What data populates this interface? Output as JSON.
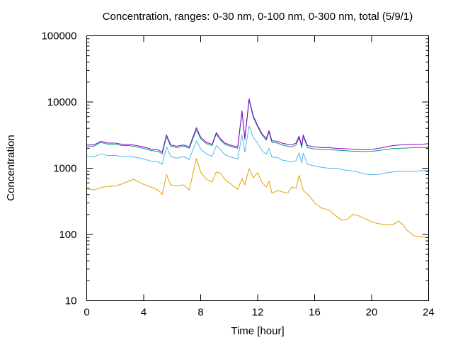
{
  "chart_data": {
    "type": "line",
    "title": "Concentration, ranges: 0-30 nm, 0-100 nm, 0-300 nm, total (5/9/1)",
    "xlabel": "Time [hour]",
    "ylabel": "Concentration",
    "xlim": [
      0,
      24
    ],
    "ylim": [
      10,
      100000
    ],
    "yscale": "log",
    "grid": false,
    "xticks": [
      0,
      4,
      8,
      12,
      16,
      20,
      24
    ],
    "xtick_labels": [
      "0",
      "4",
      "8",
      "12",
      "16",
      "20",
      "24"
    ],
    "yticks": [
      10,
      100,
      1000,
      10000,
      100000
    ],
    "ytick_labels": [
      "10",
      "100",
      "1000",
      "10000",
      "100000"
    ],
    "series": [
      {
        "color": "#e69f00",
        "points": [
          [
            0,
            490
          ],
          [
            0.5,
            470
          ],
          [
            1,
            510
          ],
          [
            1.5,
            530
          ],
          [
            2,
            540
          ],
          [
            2.5,
            580
          ],
          [
            3,
            650
          ],
          [
            3.3,
            680
          ],
          [
            3.7,
            610
          ],
          [
            4,
            570
          ],
          [
            4.5,
            520
          ],
          [
            5,
            470
          ],
          [
            5.3,
            400
          ],
          [
            5.6,
            800
          ],
          [
            5.9,
            560
          ],
          [
            6.3,
            540
          ],
          [
            6.8,
            560
          ],
          [
            7.2,
            470
          ],
          [
            7.7,
            1400
          ],
          [
            8,
            870
          ],
          [
            8.4,
            680
          ],
          [
            8.8,
            620
          ],
          [
            9.1,
            880
          ],
          [
            9.4,
            840
          ],
          [
            9.7,
            680
          ],
          [
            10.2,
            560
          ],
          [
            10.6,
            480
          ],
          [
            10.9,
            700
          ],
          [
            11.1,
            560
          ],
          [
            11.4,
            980
          ],
          [
            11.7,
            720
          ],
          [
            12,
            860
          ],
          [
            12.3,
            620
          ],
          [
            12.6,
            520
          ],
          [
            12.8,
            640
          ],
          [
            13,
            420
          ],
          [
            13.4,
            460
          ],
          [
            13.7,
            440
          ],
          [
            14.1,
            420
          ],
          [
            14.4,
            520
          ],
          [
            14.7,
            500
          ],
          [
            14.9,
            780
          ],
          [
            15.2,
            460
          ],
          [
            15.6,
            390
          ],
          [
            16,
            300
          ],
          [
            16.5,
            250
          ],
          [
            17,
            235
          ],
          [
            17.5,
            190
          ],
          [
            17.9,
            165
          ],
          [
            18.3,
            170
          ],
          [
            18.7,
            200
          ],
          [
            19,
            195
          ],
          [
            19.5,
            175
          ],
          [
            20,
            155
          ],
          [
            20.5,
            145
          ],
          [
            21,
            140
          ],
          [
            21.5,
            140
          ],
          [
            21.9,
            160
          ],
          [
            22.2,
            140
          ],
          [
            22.5,
            115
          ],
          [
            23,
            95
          ],
          [
            23.5,
            92
          ],
          [
            24,
            90
          ]
        ]
      },
      {
        "color": "#56b4e9",
        "points": [
          [
            0,
            1500
          ],
          [
            0.5,
            1500
          ],
          [
            1,
            1650
          ],
          [
            1.5,
            1550
          ],
          [
            2,
            1560
          ],
          [
            2.5,
            1500
          ],
          [
            3,
            1500
          ],
          [
            3.5,
            1450
          ],
          [
            4,
            1380
          ],
          [
            4.5,
            1280
          ],
          [
            5,
            1250
          ],
          [
            5.3,
            1150
          ],
          [
            5.6,
            2100
          ],
          [
            5.9,
            1500
          ],
          [
            6.3,
            1420
          ],
          [
            6.8,
            1500
          ],
          [
            7.2,
            1350
          ],
          [
            7.7,
            2600
          ],
          [
            8,
            1950
          ],
          [
            8.4,
            1650
          ],
          [
            8.8,
            1500
          ],
          [
            9.1,
            2200
          ],
          [
            9.4,
            1900
          ],
          [
            9.7,
            1600
          ],
          [
            10.2,
            1450
          ],
          [
            10.6,
            1380
          ],
          [
            10.9,
            3200
          ],
          [
            11.1,
            1750
          ],
          [
            11.4,
            4300
          ],
          [
            11.7,
            2900
          ],
          [
            12,
            2400
          ],
          [
            12.3,
            1850
          ],
          [
            12.6,
            1620
          ],
          [
            12.8,
            2000
          ],
          [
            13,
            1480
          ],
          [
            13.4,
            1450
          ],
          [
            13.7,
            1330
          ],
          [
            14.1,
            1280
          ],
          [
            14.4,
            1250
          ],
          [
            14.7,
            1300
          ],
          [
            14.9,
            1700
          ],
          [
            15.1,
            1200
          ],
          [
            15.2,
            1700
          ],
          [
            15.5,
            1150
          ],
          [
            16,
            1080
          ],
          [
            16.5,
            1030
          ],
          [
            17,
            1000
          ],
          [
            17.5,
            1000
          ],
          [
            18,
            950
          ],
          [
            18.5,
            920
          ],
          [
            19,
            880
          ],
          [
            19.5,
            820
          ],
          [
            20,
            800
          ],
          [
            20.5,
            810
          ],
          [
            21,
            850
          ],
          [
            21.5,
            880
          ],
          [
            22,
            900
          ],
          [
            22.5,
            890
          ],
          [
            23,
            900
          ],
          [
            23.5,
            920
          ],
          [
            24,
            920
          ]
        ]
      },
      {
        "color": "#009e73",
        "points": [
          [
            0,
            2150
          ],
          [
            0.5,
            2150
          ],
          [
            1,
            2450
          ],
          [
            1.5,
            2300
          ],
          [
            2,
            2300
          ],
          [
            2.5,
            2200
          ],
          [
            3,
            2200
          ],
          [
            3.5,
            2100
          ],
          [
            4,
            2000
          ],
          [
            4.5,
            1850
          ],
          [
            5,
            1800
          ],
          [
            5.3,
            1650
          ],
          [
            5.6,
            3000
          ],
          [
            5.9,
            2150
          ],
          [
            6.3,
            2050
          ],
          [
            6.8,
            2150
          ],
          [
            7.2,
            2000
          ],
          [
            7.7,
            3800
          ],
          [
            8,
            2800
          ],
          [
            8.4,
            2350
          ],
          [
            8.8,
            2200
          ],
          [
            9.1,
            3300
          ],
          [
            9.4,
            2650
          ],
          [
            9.7,
            2300
          ],
          [
            10.2,
            2100
          ],
          [
            10.6,
            2000
          ],
          [
            10.9,
            7000
          ],
          [
            11.1,
            2700
          ],
          [
            11.4,
            10500
          ],
          [
            11.7,
            5800
          ],
          [
            12,
            4200
          ],
          [
            12.3,
            3200
          ],
          [
            12.6,
            2650
          ],
          [
            12.8,
            3500
          ],
          [
            13,
            2450
          ],
          [
            13.4,
            2400
          ],
          [
            13.7,
            2250
          ],
          [
            14.1,
            2150
          ],
          [
            14.4,
            2100
          ],
          [
            14.7,
            2250
          ],
          [
            14.9,
            2900
          ],
          [
            15.1,
            2050
          ],
          [
            15.2,
            3050
          ],
          [
            15.5,
            2050
          ],
          [
            16,
            1950
          ],
          [
            16.5,
            1900
          ],
          [
            17,
            1900
          ],
          [
            17.5,
            1880
          ],
          [
            18,
            1850
          ],
          [
            18.5,
            1820
          ],
          [
            19,
            1800
          ],
          [
            19.5,
            1790
          ],
          [
            20,
            1800
          ],
          [
            20.5,
            1850
          ],
          [
            21,
            1920
          ],
          [
            21.5,
            1980
          ],
          [
            22,
            2000
          ],
          [
            22.5,
            2020
          ],
          [
            23,
            2040
          ],
          [
            23.5,
            2050
          ],
          [
            24,
            2080
          ]
        ]
      },
      {
        "color": "#9400d3",
        "points": [
          [
            0,
            2250
          ],
          [
            0.5,
            2250
          ],
          [
            1,
            2550
          ],
          [
            1.5,
            2400
          ],
          [
            2,
            2400
          ],
          [
            2.5,
            2300
          ],
          [
            3,
            2300
          ],
          [
            3.5,
            2200
          ],
          [
            4,
            2100
          ],
          [
            4.5,
            1950
          ],
          [
            5,
            1900
          ],
          [
            5.3,
            1750
          ],
          [
            5.6,
            3200
          ],
          [
            5.9,
            2250
          ],
          [
            6.3,
            2150
          ],
          [
            6.8,
            2250
          ],
          [
            7.2,
            2100
          ],
          [
            7.7,
            4100
          ],
          [
            8,
            2950
          ],
          [
            8.4,
            2450
          ],
          [
            8.8,
            2300
          ],
          [
            9.1,
            3450
          ],
          [
            9.4,
            2750
          ],
          [
            9.7,
            2400
          ],
          [
            10.2,
            2200
          ],
          [
            10.6,
            2100
          ],
          [
            10.9,
            7400
          ],
          [
            11.1,
            2850
          ],
          [
            11.4,
            11200
          ],
          [
            11.7,
            6100
          ],
          [
            12,
            4400
          ],
          [
            12.3,
            3350
          ],
          [
            12.6,
            2800
          ],
          [
            12.8,
            3700
          ],
          [
            13,
            2600
          ],
          [
            13.4,
            2550
          ],
          [
            13.7,
            2400
          ],
          [
            14.1,
            2300
          ],
          [
            14.4,
            2250
          ],
          [
            14.7,
            2400
          ],
          [
            14.9,
            3050
          ],
          [
            15.1,
            2200
          ],
          [
            15.2,
            3200
          ],
          [
            15.5,
            2200
          ],
          [
            16,
            2100
          ],
          [
            16.5,
            2050
          ],
          [
            17,
            2050
          ],
          [
            17.5,
            2000
          ],
          [
            18,
            1980
          ],
          [
            18.5,
            1950
          ],
          [
            19,
            1920
          ],
          [
            19.5,
            1900
          ],
          [
            20,
            1920
          ],
          [
            20.5,
            2000
          ],
          [
            21,
            2100
          ],
          [
            21.5,
            2200
          ],
          [
            22,
            2250
          ],
          [
            22.5,
            2270
          ],
          [
            23,
            2290
          ],
          [
            23.5,
            2300
          ],
          [
            24,
            2350
          ]
        ]
      }
    ]
  }
}
